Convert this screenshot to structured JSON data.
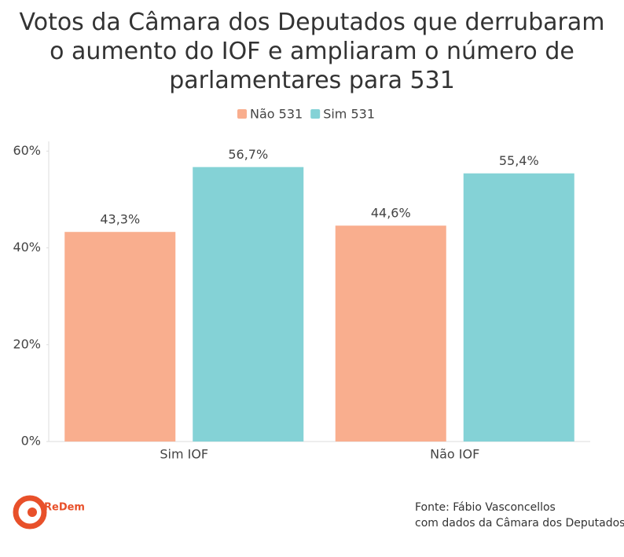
{
  "chart_data": {
    "type": "bar",
    "title": "Votos da Câmara dos Deputados que derrubaram o aumento do IOF e ampliaram o número de parlamentares para 531",
    "categories": [
      "Sim IOF",
      "Não IOF"
    ],
    "series": [
      {
        "name": "Não 531",
        "color": "#f9ae8e",
        "values": [
          43.3,
          44.6
        ],
        "value_labels": [
          "43,3%",
          "44,6%"
        ]
      },
      {
        "name": "Sim 531",
        "color": "#84d2d6",
        "values": [
          56.7,
          55.4
        ],
        "value_labels": [
          "56,7%",
          "55,4%"
        ]
      }
    ],
    "ylim": [
      0,
      62
    ],
    "yticks": [
      {
        "value": 0,
        "label": "0%"
      },
      {
        "value": 20,
        "label": "20%"
      },
      {
        "value": 40,
        "label": "40%"
      },
      {
        "value": 60,
        "label": "60%"
      }
    ],
    "grid": false,
    "legend": "top",
    "source": [
      "Fonte: Fábio Vasconcellos",
      "com dados da Câmara dos Deputados"
    ],
    "logo": "ReDem"
  }
}
